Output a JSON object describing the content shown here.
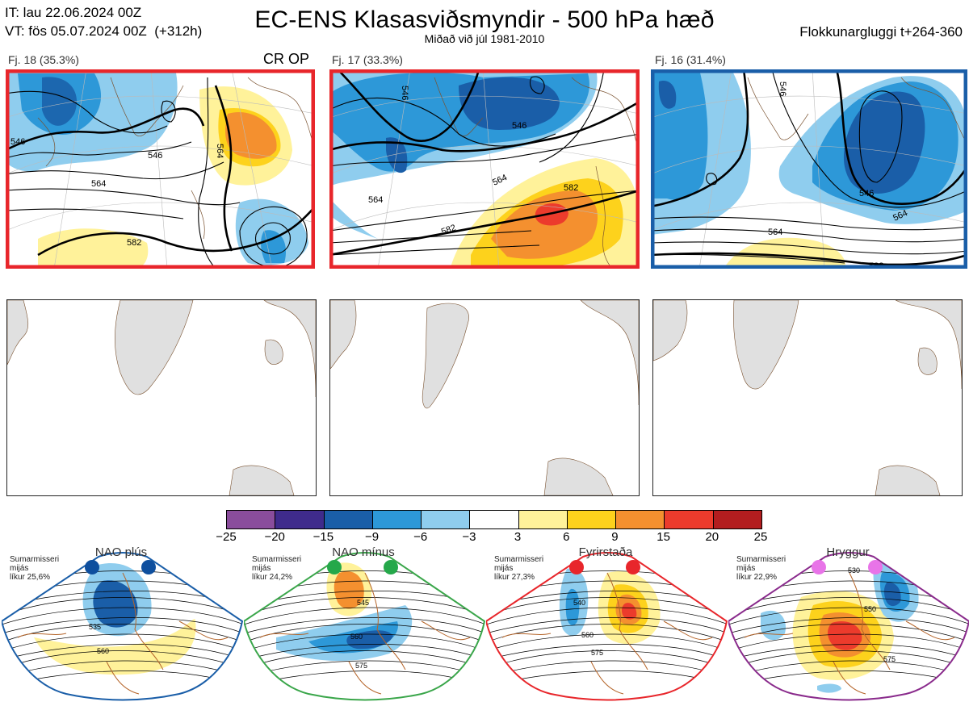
{
  "header": {
    "it_line": "IT: lau 22.06.2024 00Z",
    "vt_line": "VT: fös 05.07.2024 00Z  (+312h)",
    "title": "EC-ENS Klasasviðsmyndir - 500 hPa hæð",
    "subtitle": "Miðað við júl 1981-2010",
    "window": "Flokkunargluggi t+264-360"
  },
  "clusters": [
    {
      "label": "Fj. 18 (35.3%)",
      "frame_color": "#e8262b",
      "tag": "CR OP",
      "contours": [
        "546",
        "546",
        "564",
        "564",
        "582"
      ]
    },
    {
      "label": "Fj. 17 (33.3%)",
      "frame_color": "#e8262b",
      "tag": "",
      "contours": [
        "546",
        "546",
        "564",
        "564",
        "582",
        "582"
      ]
    },
    {
      "label": "Fj. 16 (31.4%)",
      "frame_color": "#1a5ea8",
      "tag": "",
      "contours": [
        "546",
        "546",
        "564",
        "564",
        "582"
      ]
    }
  ],
  "colorbar": {
    "colors": [
      "#8a4d9c",
      "#3f2b8c",
      "#1a5ea8",
      "#2d98d8",
      "#8fcdee",
      "#ffffff",
      "#fff29a",
      "#fdd21c",
      "#f4902f",
      "#ec3b2c",
      "#b31d1f"
    ],
    "ticks": [
      "−25",
      "−20",
      "−15",
      "−9",
      "−6",
      "−3",
      "3",
      "6",
      "9",
      "15",
      "20",
      "25"
    ]
  },
  "regimes": [
    {
      "title": "NAO plús",
      "color": "#0e4f9e",
      "frame": "#1a5ea8",
      "note": [
        "Sumarmisseri",
        "mijás",
        "líkur 25,6%"
      ],
      "contours": [
        "535",
        "560"
      ]
    },
    {
      "title": "NAO mínus",
      "color": "#25a84a",
      "frame": "#3aa64a",
      "note": [
        "Sumarmisseri",
        "mijás",
        "líkur 24,2%"
      ],
      "contours": [
        "545",
        "560",
        "575"
      ]
    },
    {
      "title": "Fyrirstaða",
      "color": "#e8262b",
      "frame": "#e8262b",
      "note": [
        "Sumarmisseri",
        "mijás",
        "líkur 27,3%"
      ],
      "contours": [
        "540",
        "560",
        "575"
      ]
    },
    {
      "title": "Hryggur",
      "color": "#e874e8",
      "frame": "#8a2b8c",
      "note": [
        "Sumarmisseri",
        "mijás",
        "líkur 22,9%"
      ],
      "contours": [
        "530",
        "550",
        "575"
      ]
    }
  ]
}
